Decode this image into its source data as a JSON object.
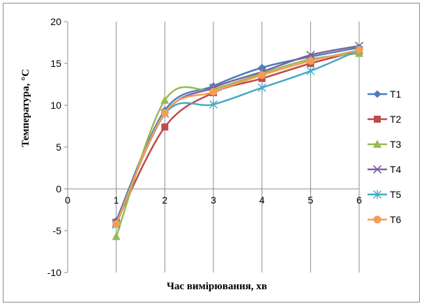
{
  "chart_data": {
    "type": "line",
    "title": "",
    "xlabel": "Час вимірювання, хв",
    "ylabel": "Температура, °C",
    "xlim": [
      0,
      6
    ],
    "ylim": [
      -10,
      20
    ],
    "x_ticks": [
      0,
      1,
      2,
      3,
      4,
      5,
      6
    ],
    "y_ticks": [
      -10,
      -5,
      0,
      5,
      10,
      15,
      20
    ],
    "grid": {
      "horizontal": false,
      "vertical": true
    },
    "legend": "right",
    "x": [
      1,
      2,
      3,
      4,
      5,
      6
    ],
    "series": [
      {
        "name": "T1",
        "values": [
          -3.8,
          9.4,
          12.3,
          14.5,
          15.8,
          16.9
        ],
        "color": "#4a7ebb",
        "marker": "diamond"
      },
      {
        "name": "T2",
        "values": [
          -4.0,
          7.4,
          11.5,
          13.2,
          15.0,
          16.5
        ],
        "color": "#be4b48",
        "marker": "square"
      },
      {
        "name": "T3",
        "values": [
          -5.7,
          10.6,
          11.9,
          13.8,
          15.5,
          16.2
        ],
        "color": "#98b954",
        "marker": "triangle"
      },
      {
        "name": "T4",
        "values": [
          -4.1,
          9.0,
          12.1,
          14.0,
          16.0,
          17.1
        ],
        "color": "#7d60a0",
        "marker": "x"
      },
      {
        "name": "T5",
        "values": [
          -4.3,
          9.0,
          10.1,
          12.1,
          14.1,
          16.6
        ],
        "color": "#46aac5",
        "marker": "star"
      },
      {
        "name": "T6",
        "values": [
          -4.2,
          9.1,
          11.6,
          13.6,
          15.3,
          16.6
        ],
        "color": "#f59d56",
        "marker": "circle"
      }
    ]
  }
}
